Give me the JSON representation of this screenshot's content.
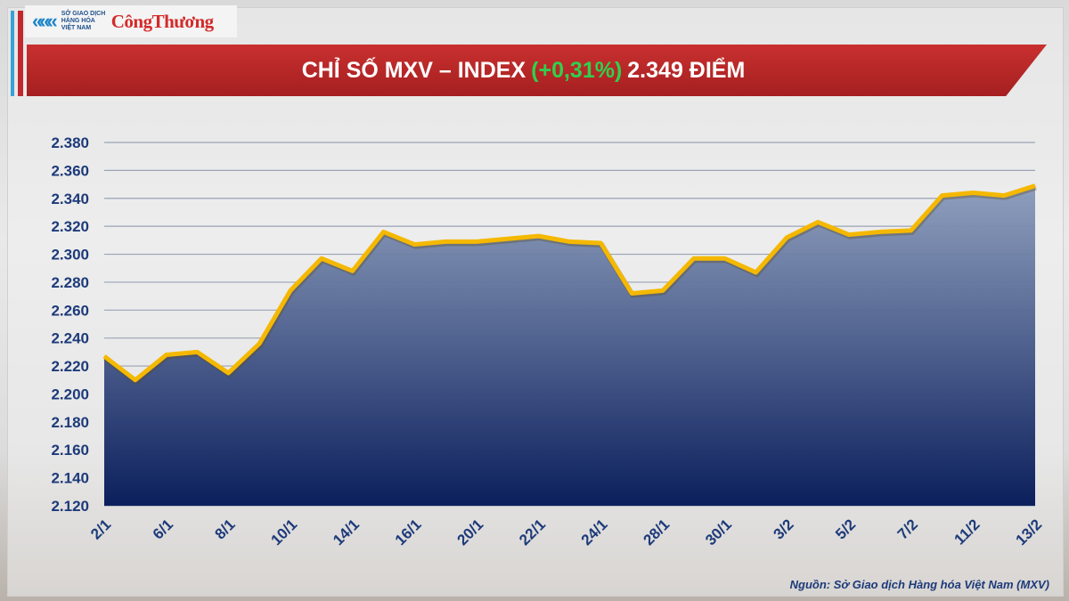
{
  "logo": {
    "org_text": "SỞ GIAO DỊCH HÀNG HÓA VIỆT NAM",
    "brand": "CôngThương"
  },
  "header": {
    "title_prefix": "CHỈ SỐ MXV – INDEX",
    "change": "(+0,31%)",
    "value": "2.349 ĐIỂM"
  },
  "source": "Nguồn: Sở Giao dịch Hàng hóa Việt Nam (MXV)",
  "colors": {
    "line": "#f5b800",
    "area_top": "#8a9bbb",
    "area_bottom": "#0b1f5c",
    "banner": "#b8262a",
    "change": "#2fd14c",
    "axis_text": "#1d3a7a"
  },
  "chart_data": {
    "type": "area",
    "title": "CHỈ SỐ MXV – INDEX (+0,31%) 2.349 ĐIỂM",
    "x": [
      "2/1",
      "",
      "6/1",
      "",
      "8/1",
      "",
      "10/1",
      "",
      "14/1",
      "",
      "16/1",
      "",
      "20/1",
      "",
      "22/1",
      "",
      "24/1",
      "",
      "28/1",
      "",
      "30/1",
      "",
      "3/2",
      "",
      "5/2",
      "",
      "7/2",
      "",
      "11/2",
      "",
      "13/2"
    ],
    "values": [
      2227,
      2210,
      2228,
      2230,
      2215,
      2236,
      2274,
      2297,
      2288,
      2316,
      2307,
      2309,
      2309,
      2311,
      2313,
      2309,
      2308,
      2272,
      2274,
      2297,
      2297,
      2287,
      2312,
      2323,
      2314,
      2316,
      2317,
      2342,
      2344,
      2342,
      2349
    ],
    "yticks": [
      "2.120",
      "2.140",
      "2.160",
      "2.180",
      "2.200",
      "2.220",
      "2.240",
      "2.260",
      "2.280",
      "2.300",
      "2.320",
      "2.340",
      "2.360",
      "2.380"
    ],
    "ylim": [
      2120,
      2380
    ],
    "grid": true,
    "xlabel": "",
    "ylabel": ""
  }
}
